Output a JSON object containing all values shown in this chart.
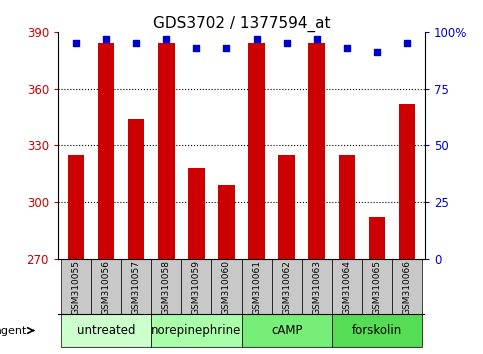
{
  "title": "GDS3702 / 1377594_at",
  "samples": [
    "GSM310055",
    "GSM310056",
    "GSM310057",
    "GSM310058",
    "GSM310059",
    "GSM310060",
    "GSM310061",
    "GSM310062",
    "GSM310063",
    "GSM310064",
    "GSM310065",
    "GSM310066"
  ],
  "counts": [
    325,
    384,
    344,
    384,
    318,
    309,
    384,
    325,
    384,
    325,
    292,
    352
  ],
  "percentile_ranks": [
    95,
    97,
    95,
    97,
    93,
    93,
    97,
    95,
    97,
    93,
    91,
    95
  ],
  "ylim_left": [
    270,
    390
  ],
  "yticks_left": [
    270,
    300,
    330,
    360,
    390
  ],
  "ylim_right": [
    0,
    100
  ],
  "yticks_right": [
    0,
    25,
    50,
    75,
    100
  ],
  "bar_color": "#cc0000",
  "dot_color": "#0000cc",
  "groups": [
    {
      "label": "untreated",
      "start": 0,
      "end": 2,
      "color": "#ccffcc"
    },
    {
      "label": "norepinephrine",
      "start": 3,
      "end": 5,
      "color": "#aaffaa"
    },
    {
      "label": "cAMP",
      "start": 6,
      "end": 8,
      "color": "#77ee77"
    },
    {
      "label": "forskolin",
      "start": 9,
      "end": 11,
      "color": "#55dd55"
    }
  ],
  "background_color": "#ffffff",
  "tick_label_color_left": "#cc0000",
  "tick_label_color_right": "#0000cc",
  "title_fontsize": 11,
  "axis_fontsize": 8.5,
  "sample_label_fontsize": 6.5,
  "group_label_fontsize": 8.5,
  "legend_fontsize": 8
}
